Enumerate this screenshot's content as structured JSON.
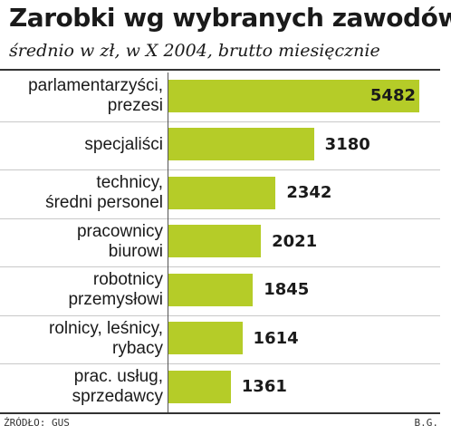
{
  "chart_data": {
    "type": "bar",
    "orientation": "horizontal",
    "title": "Zarobki wg wybranych zawodów",
    "subtitle": "średnio w zł, w X 2004, brutto miesięcznie",
    "categories": [
      "parlamentarzyści,\nprezesi",
      "specjaliści",
      "technicy,\nśredni personel",
      "pracownicy\nbiurowi",
      "robotnicy\nprzemysłowi",
      "rolnicy, leśnicy,\nrybacy",
      "prac. usług,\nsprzedawcy"
    ],
    "values": [
      5482,
      3180,
      2342,
      2021,
      1845,
      1614,
      1361
    ],
    "value_labels": [
      "5482",
      "3180",
      "2342",
      "2021",
      "1845",
      "1614",
      "1361"
    ],
    "xlim": [
      0,
      5600
    ],
    "bar_color": "#b5cc28",
    "grid": false,
    "legend": "none"
  },
  "footer": {
    "source": "ŹRÓDŁO: GUS",
    "credit": "B.G."
  }
}
